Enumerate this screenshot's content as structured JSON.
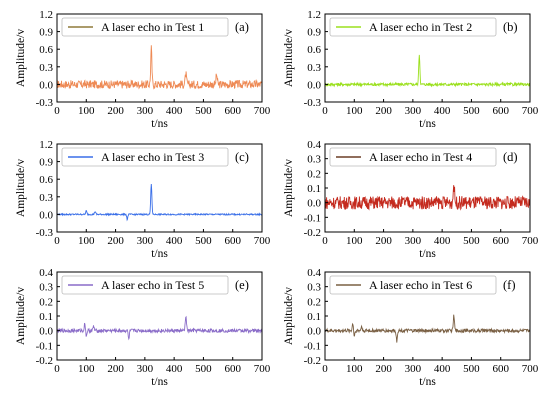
{
  "figure": {
    "xlabel": "t/ns",
    "ylabel": "Amplitude/v"
  },
  "chart_data": [
    {
      "type": "line",
      "panel_label": "(a)",
      "legend": "A laser echo in Test 1",
      "color": "#ee8a55",
      "legend_color": "#8f7a3a",
      "xlim": [
        0,
        700
      ],
      "ylim": [
        -0.3,
        1.2
      ],
      "xticks": [
        "0",
        "100",
        "200",
        "300",
        "400",
        "500",
        "600",
        "700"
      ],
      "yticks": [
        "-0.3",
        "0.0",
        "0.3",
        "0.6",
        "0.9",
        "1.2"
      ],
      "noise_amplitude": 0.07,
      "peaks": [
        {
          "x": 322,
          "y": 0.62
        },
        {
          "x": 440,
          "y": 0.18
        },
        {
          "x": 545,
          "y": 0.17
        }
      ],
      "dips": []
    },
    {
      "type": "line",
      "panel_label": "(b)",
      "legend": "A laser echo in Test 2",
      "color": "#9be01e",
      "legend_color": "#9be01e",
      "xlim": [
        0,
        700
      ],
      "ylim": [
        -0.3,
        1.2
      ],
      "xticks": [
        "0",
        "100",
        "200",
        "300",
        "400",
        "500",
        "600",
        "700"
      ],
      "yticks": [
        "-0.3",
        "0.0",
        "0.3",
        "0.6",
        "0.9",
        "1.2"
      ],
      "noise_amplitude": 0.025,
      "peaks": [
        {
          "x": 322,
          "y": 0.52
        }
      ],
      "dips": []
    },
    {
      "type": "line",
      "panel_label": "(c)",
      "legend": "A laser echo in Test 3",
      "color": "#3a6fe8",
      "legend_color": "#3a6fe8",
      "xlim": [
        0,
        700
      ],
      "ylim": [
        -0.3,
        1.2
      ],
      "xticks": [
        "0",
        "100",
        "200",
        "300",
        "400",
        "500",
        "600",
        "700"
      ],
      "yticks": [
        "-0.3",
        "0.0",
        "0.3",
        "0.6",
        "0.9",
        "1.2"
      ],
      "noise_amplitude": 0.012,
      "peaks": [
        {
          "x": 322,
          "y": 0.52
        },
        {
          "x": 100,
          "y": 0.06
        },
        {
          "x": 130,
          "y": 0.05
        }
      ],
      "dips": [
        {
          "x": 240,
          "y": -0.09
        }
      ]
    },
    {
      "type": "line",
      "panel_label": "(d)",
      "legend": "A laser echo in Test 4",
      "color": "#c42a1e",
      "legend_color": "#6b3e26",
      "xlim": [
        0,
        700
      ],
      "ylim": [
        -0.2,
        0.4
      ],
      "xticks": [
        "0",
        "100",
        "200",
        "300",
        "400",
        "500",
        "600",
        "700"
      ],
      "yticks": [
        "-0.2",
        "-0.1",
        "0.0",
        "0.1",
        "0.2",
        "0.3",
        "0.4"
      ],
      "noise_amplitude": 0.045,
      "peaks": [
        {
          "x": 440,
          "y": 0.13
        }
      ],
      "dips": []
    },
    {
      "type": "line",
      "panel_label": "(e)",
      "legend": "A laser echo in Test 5",
      "color": "#8a6cc8",
      "legend_color": "#8a6cc8",
      "xlim": [
        0,
        700
      ],
      "ylim": [
        -0.2,
        0.4
      ],
      "xticks": [
        "0",
        "100",
        "200",
        "300",
        "400",
        "500",
        "600",
        "700"
      ],
      "yticks": [
        "-0.2",
        "-0.1",
        "0.0",
        "0.1",
        "0.2",
        "0.3",
        "0.4"
      ],
      "noise_amplitude": 0.012,
      "peaks": [
        {
          "x": 440,
          "y": 0.1
        },
        {
          "x": 95,
          "y": 0.05
        },
        {
          "x": 125,
          "y": 0.03
        }
      ],
      "dips": [
        {
          "x": 245,
          "y": -0.06
        },
        {
          "x": 100,
          "y": -0.04
        }
      ]
    },
    {
      "type": "line",
      "panel_label": "(f)",
      "legend": "A laser echo in Test 6",
      "color": "#7a6044",
      "legend_color": "#7a6044",
      "xlim": [
        0,
        700
      ],
      "ylim": [
        -0.2,
        0.4
      ],
      "xticks": [
        "0",
        "100",
        "200",
        "300",
        "400",
        "500",
        "600",
        "700"
      ],
      "yticks": [
        "-0.2",
        "-0.1",
        "0.0",
        "0.1",
        "0.2",
        "0.3",
        "0.4"
      ],
      "noise_amplitude": 0.012,
      "peaks": [
        {
          "x": 440,
          "y": 0.1
        },
        {
          "x": 95,
          "y": 0.05
        },
        {
          "x": 125,
          "y": 0.03
        }
      ],
      "dips": [
        {
          "x": 245,
          "y": -0.07
        },
        {
          "x": 100,
          "y": -0.04
        }
      ]
    }
  ]
}
